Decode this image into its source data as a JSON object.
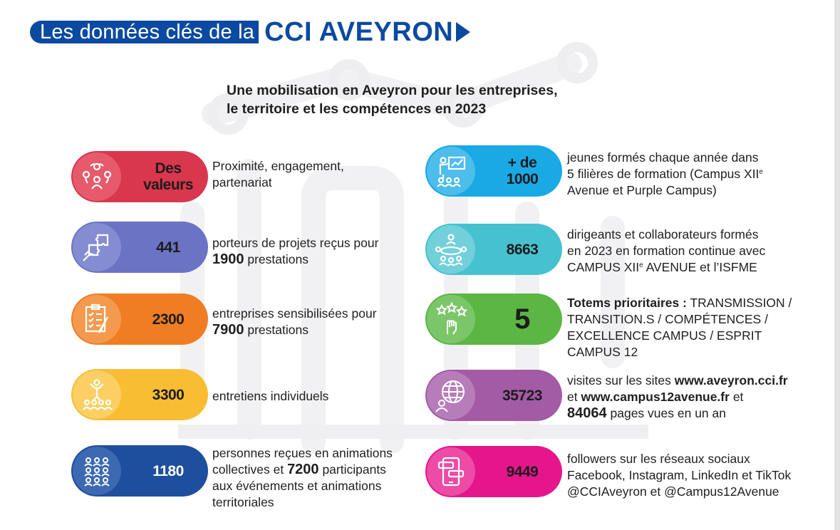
{
  "header": {
    "title_light": "Les données clés de la",
    "title_strong": "CCI AVEYRON",
    "color": "#0b4aa0"
  },
  "subtitle": {
    "line1": "Une mobilisation en Aveyron pour les entreprises,",
    "line2": "le territoire et les compétences en 2023"
  },
  "stats_left": [
    {
      "value1": "Des",
      "value2": "valeurs",
      "icon": "people-circle-icon",
      "color": "#d9374d",
      "text": "Proximité, engagement, partenariat"
    },
    {
      "value": "441",
      "icon": "puzzle-hand-icon",
      "color": "#6a73c4",
      "text_a": "porteurs de projets reçus pour",
      "num": "1900",
      "text_b": "prestations"
    },
    {
      "value": "2300",
      "icon": "checklist-icon",
      "color": "#f07d24",
      "text_a": "entreprises sensibilisées pour",
      "num": "7900",
      "text_b": "prestations"
    },
    {
      "value": "3300",
      "icon": "speaker-audience-icon",
      "color": "#f9bd34",
      "text": "entretiens individuels"
    },
    {
      "value": "1180",
      "icon": "crowd-icon",
      "color": "#1e4f9e",
      "text_a": "personnes reçues en animations collectives et",
      "num": "7200",
      "text_b": "participants aux événements et animations territoriales"
    }
  ],
  "stats_right": [
    {
      "value1": "+ de",
      "value2": "1000",
      "icon": "training-board-icon",
      "color": "#19a9e5",
      "line1": "jeunes formés chaque année dans",
      "line2": "5 filières de formation (Campus XII",
      "sup": "e",
      "line3": "Avenue et Purple Campus)"
    },
    {
      "value": "8663",
      "icon": "meeting-table-icon",
      "color": "#46c1d0",
      "line1": "dirigeants et collaborateurs formés",
      "line2": "en 2023 en formation continue avec",
      "line3a": "CAMPUS XII",
      "sup": "e",
      "line3b": " AVENUE et l’ISFME"
    },
    {
      "value": "5",
      "icon": "stars-hand-icon",
      "color": "#5bb644",
      "strong": "Totems prioritaires :",
      "line1": "TRANSMISSION /",
      "line2": "TRANSITION.S / COMPÉTENCES /",
      "line3": "EXCELLENCE CAMPUS / ESPRIT CAMPUS 12"
    },
    {
      "value": "35723",
      "icon": "globe-user-icon",
      "color": "#a35ba6",
      "line1": "visites sur les sites",
      "site1": "www.aveyron.cci.fr",
      "line2a": "et",
      "site2": "www.campus12avenue.fr",
      "line2b": "et",
      "num": "84064",
      "line3": "pages vues en un an"
    },
    {
      "value": "9449",
      "icon": "phone-chat-icon",
      "color": "#e5168c",
      "line1": "followers sur les réseaux sociaux",
      "line2": "Facebook, Instagram, LinkedIn et TikTok",
      "line3": "@CCIAveyron et @Campus12Avenue"
    }
  ]
}
